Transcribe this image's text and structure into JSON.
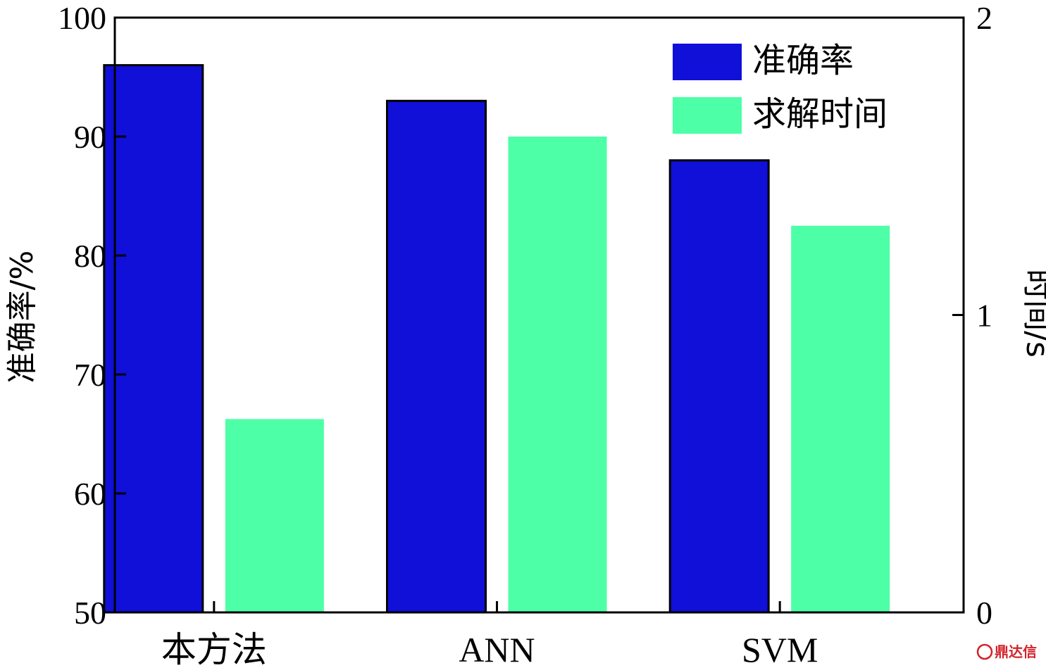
{
  "chart_data": {
    "type": "bar",
    "categories": [
      "本方法",
      "ANN",
      "SVM"
    ],
    "series": [
      {
        "name": "准确率",
        "axis": "left",
        "color": "#1010d8",
        "values": [
          96,
          93,
          88
        ]
      },
      {
        "name": "求解时间",
        "axis": "right",
        "color": "#4dffa6",
        "values": [
          0.65,
          1.6,
          1.3
        ]
      }
    ],
    "y_left": {
      "label": "准确率/%",
      "ylim": [
        50,
        100
      ],
      "ticks": [
        "50",
        "60",
        "70",
        "80",
        "90",
        "100"
      ],
      "tick_values": [
        50,
        60,
        70,
        80,
        90,
        100
      ]
    },
    "y_right": {
      "label": "时间/s",
      "ylim": [
        0,
        2
      ],
      "ticks": [
        "0",
        "1",
        "2"
      ],
      "tick_values": [
        0,
        1,
        2
      ]
    },
    "legend_position": "top-right",
    "grid": false
  },
  "watermark": {
    "text": "鼎达信"
  }
}
